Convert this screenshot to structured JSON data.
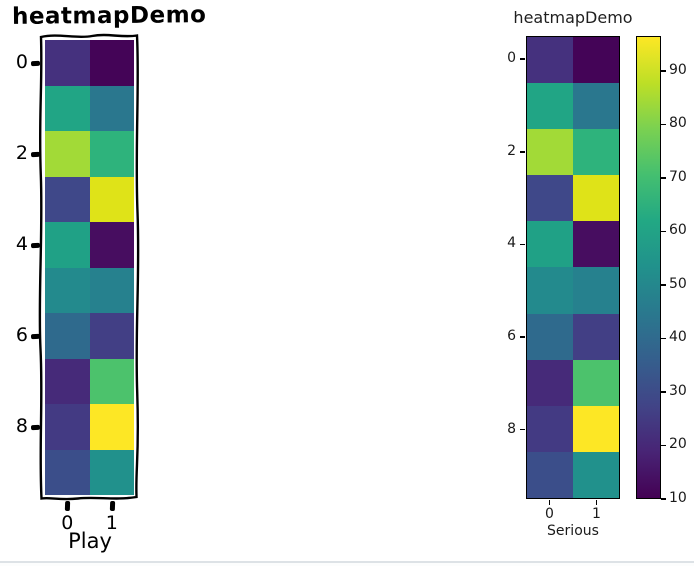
{
  "left_chart": {
    "title": "heatmapDemo",
    "xlabel": "Play",
    "x_tick_labels": [
      "0",
      "1"
    ],
    "y_tick_labels": [
      "0",
      "2",
      "4",
      "6",
      "8"
    ]
  },
  "right_chart": {
    "title": "heatmapDemo",
    "xlabel": "Serious",
    "x_tick_labels": [
      "0",
      "1"
    ],
    "y_tick_labels": [
      "0",
      "2",
      "4",
      "6",
      "8"
    ],
    "colorbar_tick_labels": [
      "90",
      "80",
      "70",
      "60",
      "50",
      "40",
      "30",
      "20",
      "10"
    ]
  },
  "chart_data": [
    {
      "type": "heatmap",
      "panel": "left",
      "style": "xkcd-hand-drawn",
      "title": "heatmapDemo",
      "xlabel": "Play",
      "ylabel": "",
      "x_ticks": [
        0,
        1
      ],
      "y_ticks": [
        0,
        2,
        4,
        6,
        8
      ],
      "rows": 10,
      "cols": 2,
      "colormap": "viridis",
      "value_range": [
        10,
        96.5
      ],
      "values_estimated": [
        [
          20,
          10
        ],
        [
          64,
          49
        ],
        [
          83,
          68
        ],
        [
          29,
          93
        ],
        [
          63,
          14
        ],
        [
          55,
          51
        ],
        [
          44,
          27
        ],
        [
          19,
          75
        ],
        [
          25,
          96
        ],
        [
          33,
          58
        ]
      ],
      "cell_colors": [
        [
          "#45317e",
          "#440457"
        ],
        [
          "#21a585",
          "#2a778e"
        ],
        [
          "#a2da37",
          "#2eb37c"
        ],
        [
          "#3f4889",
          "#dfe318"
        ],
        [
          "#20a186",
          "#470d60"
        ],
        [
          "#238a8d",
          "#26818e"
        ],
        [
          "#2f6a8d",
          "#423f85"
        ],
        [
          "#462a79",
          "#4cc26c"
        ],
        [
          "#433a83",
          "#fde725"
        ],
        [
          "#3b4e8a",
          "#21918c"
        ]
      ]
    },
    {
      "type": "heatmap",
      "panel": "right",
      "style": "matplotlib-default",
      "title": "heatmapDemo",
      "xlabel": "Serious",
      "ylabel": "",
      "x_ticks": [
        0,
        1
      ],
      "y_ticks": [
        0,
        2,
        4,
        6,
        8
      ],
      "rows": 10,
      "cols": 2,
      "colormap": "viridis",
      "value_range": [
        10,
        96.5
      ],
      "values_estimated": [
        [
          20,
          10
        ],
        [
          64,
          49
        ],
        [
          83,
          68
        ],
        [
          29,
          93
        ],
        [
          63,
          14
        ],
        [
          55,
          51
        ],
        [
          44,
          27
        ],
        [
          19,
          75
        ],
        [
          25,
          96
        ],
        [
          33,
          58
        ]
      ],
      "cell_colors": [
        [
          "#45317e",
          "#440457"
        ],
        [
          "#21a585",
          "#2a778e"
        ],
        [
          "#a2da37",
          "#2eb37c"
        ],
        [
          "#3f4889",
          "#dfe318"
        ],
        [
          "#20a186",
          "#470d60"
        ],
        [
          "#238a8d",
          "#26818e"
        ],
        [
          "#2f6a8d",
          "#423f85"
        ],
        [
          "#462a79",
          "#4cc26c"
        ],
        [
          "#433a83",
          "#fde725"
        ],
        [
          "#3b4e8a",
          "#21918c"
        ]
      ],
      "colorbar": {
        "tick_values": [
          90,
          80,
          70,
          60,
          50,
          40,
          30,
          20,
          10
        ],
        "range": [
          10,
          96.5
        ],
        "min_color": "#440154",
        "max_color": "#fde725"
      }
    }
  ]
}
